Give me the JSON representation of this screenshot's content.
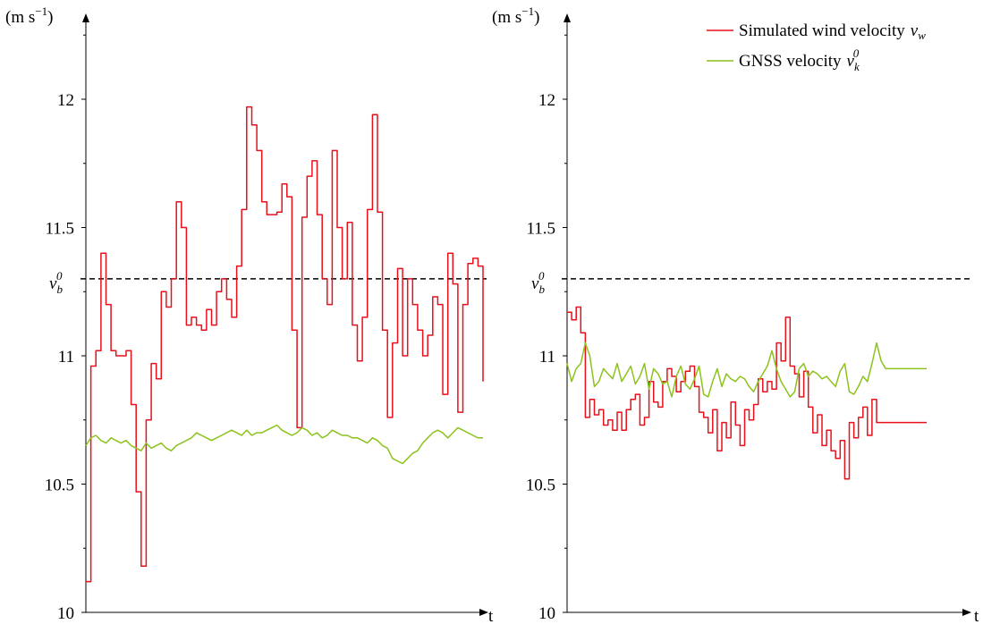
{
  "chart_data": [
    {
      "type": "line",
      "ylabel": "(m s",
      "ylabel_sup": "−1",
      "ylabel_close": ")",
      "xlabel": "t",
      "ylim": [
        10,
        12.5
      ],
      "y_ticks": [
        10,
        10.5,
        11,
        11.5,
        12
      ],
      "y_tick_labels": [
        "10",
        "10.5",
        "11",
        "11.5",
        "12"
      ],
      "minor_ticks": [
        10.25,
        10.75,
        11.25,
        11.75,
        12.25
      ],
      "reference": {
        "value": 11.3,
        "label": "v",
        "sub": "b",
        "sup": "0"
      },
      "x": [
        0,
        1,
        2,
        3,
        4,
        5,
        6,
        7,
        8,
        9,
        10,
        11,
        12,
        13,
        14,
        15,
        16,
        17,
        18,
        19,
        20,
        21,
        22,
        23,
        24,
        25,
        26,
        27,
        28,
        29,
        30,
        31,
        32,
        33,
        34,
        35,
        36,
        37,
        38,
        39,
        40,
        41,
        42,
        43,
        44,
        45,
        46,
        47,
        48,
        49,
        50,
        51,
        52,
        53,
        54,
        55,
        56,
        57,
        58,
        59,
        60,
        61,
        62,
        63,
        64,
        65,
        66,
        67,
        68,
        69,
        70,
        71,
        72,
        73,
        74,
        75,
        76,
        77,
        78,
        79
      ],
      "series": [
        {
          "name": "Simulated wind velocity",
          "color": "#e8101a",
          "step": true,
          "values": [
            10.12,
            10.96,
            11.02,
            11.4,
            11.2,
            11.02,
            11.0,
            11.0,
            11.02,
            10.81,
            10.47,
            10.18,
            10.75,
            10.97,
            10.91,
            11.25,
            11.19,
            11.3,
            11.6,
            11.5,
            11.12,
            11.15,
            11.12,
            11.1,
            11.18,
            11.12,
            11.25,
            11.3,
            11.22,
            11.15,
            11.35,
            11.57,
            11.97,
            11.9,
            11.8,
            11.6,
            11.55,
            11.55,
            11.56,
            11.67,
            11.62,
            11.1,
            10.72,
            11.54,
            11.7,
            11.76,
            11.55,
            11.3,
            11.2,
            11.8,
            11.5,
            11.3,
            11.52,
            11.12,
            10.98,
            11.15,
            11.57,
            11.94,
            11.56,
            11.1,
            10.76,
            11.05,
            11.34,
            11.0,
            11.3,
            11.2,
            11.1,
            11.0,
            11.08,
            11.23,
            11.2,
            10.85,
            11.4,
            11.28,
            10.78,
            11.2,
            11.36,
            11.38,
            11.35,
            10.9
          ]
        },
        {
          "name": "GNSS velocity",
          "color": "#8cc21c",
          "values": [
            10.65,
            10.68,
            10.69,
            10.67,
            10.66,
            10.68,
            10.67,
            10.66,
            10.67,
            10.65,
            10.64,
            10.63,
            10.66,
            10.64,
            10.65,
            10.66,
            10.64,
            10.63,
            10.65,
            10.66,
            10.67,
            10.68,
            10.7,
            10.69,
            10.68,
            10.67,
            10.68,
            10.69,
            10.7,
            10.71,
            10.7,
            10.69,
            10.71,
            10.69,
            10.7,
            10.7,
            10.71,
            10.72,
            10.73,
            10.71,
            10.7,
            10.69,
            10.7,
            10.72,
            10.71,
            10.69,
            10.7,
            10.68,
            10.69,
            10.71,
            10.7,
            10.69,
            10.69,
            10.68,
            10.68,
            10.67,
            10.66,
            10.68,
            10.67,
            10.65,
            10.64,
            10.6,
            10.59,
            10.58,
            10.6,
            10.62,
            10.63,
            10.66,
            10.68,
            10.7,
            10.71,
            10.7,
            10.68,
            10.7,
            10.72,
            10.71,
            10.7,
            10.69,
            10.68,
            10.68
          ]
        }
      ]
    },
    {
      "type": "line",
      "ylabel": "(m s",
      "ylabel_sup": "−1",
      "ylabel_close": ")",
      "xlabel": "t",
      "ylim": [
        10,
        12.5
      ],
      "y_ticks": [
        10,
        10.5,
        11,
        11.5,
        12
      ],
      "y_tick_labels": [
        "10",
        "10.5",
        "11",
        "11.5",
        "12"
      ],
      "minor_ticks": [
        10.25,
        10.75,
        11.25,
        11.75,
        12.25
      ],
      "reference": {
        "value": 11.3,
        "label": "v",
        "sub": "b",
        "sup": "0"
      },
      "x": [
        0,
        1,
        2,
        3,
        4,
        5,
        6,
        7,
        8,
        9,
        10,
        11,
        12,
        13,
        14,
        15,
        16,
        17,
        18,
        19,
        20,
        21,
        22,
        23,
        24,
        25,
        26,
        27,
        28,
        29,
        30,
        31,
        32,
        33,
        34,
        35,
        36,
        37,
        38,
        39,
        40,
        41,
        42,
        43,
        44,
        45,
        46,
        47,
        48,
        49,
        50,
        51,
        52,
        53,
        54,
        55,
        56,
        57,
        58,
        59,
        60,
        61,
        62,
        63,
        64,
        65,
        66,
        67,
        68,
        69,
        70,
        71,
        72,
        73,
        74,
        75,
        76,
        77,
        78,
        79
      ],
      "series": [
        {
          "name": "Simulated wind velocity",
          "color": "#e8101a",
          "step": true,
          "values": [
            11.17,
            11.14,
            11.19,
            11.09,
            10.76,
            10.83,
            10.77,
            10.79,
            10.73,
            10.75,
            10.71,
            10.78,
            10.71,
            10.79,
            10.83,
            10.85,
            10.73,
            10.76,
            10.9,
            10.82,
            10.8,
            10.9,
            10.95,
            10.92,
            10.86,
            10.9,
            10.94,
            10.96,
            10.88,
            10.78,
            10.76,
            10.7,
            10.79,
            10.63,
            10.74,
            10.68,
            10.82,
            10.73,
            10.65,
            10.79,
            10.75,
            10.81,
            10.91,
            10.86,
            10.9,
            10.87,
            11.05,
            10.98,
            11.15,
            10.96,
            10.93,
            10.84,
            10.94,
            10.8,
            10.7,
            10.77,
            10.65,
            10.71,
            10.63,
            10.6,
            10.67,
            10.52,
            10.74,
            10.68,
            10.76,
            10.8,
            10.69,
            10.83,
            10.74,
            10.74,
            10.74,
            10.74,
            10.74,
            10.74,
            10.74,
            10.74,
            10.74,
            10.74,
            10.74,
            10.74
          ]
        },
        {
          "name": "GNSS velocity",
          "color": "#8cc21c",
          "values": [
            10.97,
            10.9,
            10.95,
            10.97,
            11.05,
            11.0,
            10.88,
            10.9,
            10.95,
            10.93,
            10.91,
            10.97,
            10.9,
            10.93,
            10.96,
            10.89,
            10.92,
            10.97,
            10.87,
            10.95,
            10.93,
            10.89,
            10.9,
            10.84,
            10.92,
            10.96,
            10.89,
            10.87,
            10.91,
            10.96,
            10.85,
            10.84,
            10.9,
            10.95,
            10.88,
            10.93,
            10.91,
            10.9,
            10.92,
            10.91,
            10.88,
            10.86,
            10.9,
            10.93,
            10.96,
            11.02,
            10.95,
            10.9,
            10.87,
            10.84,
            10.86,
            10.95,
            10.97,
            10.92,
            10.94,
            10.93,
            10.91,
            10.92,
            10.9,
            10.88,
            10.94,
            10.97,
            10.86,
            10.85,
            10.88,
            10.92,
            10.9,
            10.97,
            11.05,
            10.98,
            10.95,
            10.95,
            10.95,
            10.95,
            10.95,
            10.95,
            10.95,
            10.95,
            10.95,
            10.95
          ]
        }
      ]
    }
  ],
  "legend": {
    "placement": "top-right",
    "items": [
      {
        "label": "Simulated wind velocity",
        "symbol": "v",
        "sub": "w",
        "sup": "",
        "color": "#e8101a"
      },
      {
        "label": "GNSS velocity",
        "symbol": "v",
        "sub": "k",
        "sup": "0",
        "color": "#8cc21c"
      }
    ]
  }
}
